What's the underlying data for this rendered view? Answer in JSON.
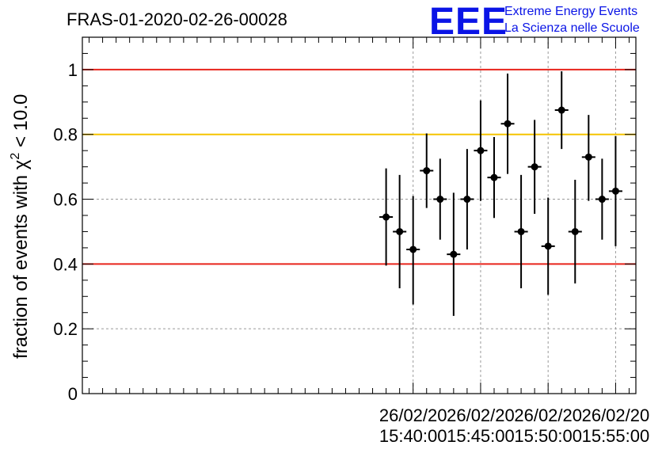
{
  "chart_data": {
    "type": "scatter",
    "title": "FRAS-01-2020-02-26-00028",
    "ylabel": "fraction of events with",
    "ylabel_symbol": "χ",
    "ylabel_sup": "2",
    "ylabel_suffix": "< 10.0",
    "xlabel": "",
    "ylim": [
      0,
      1.1
    ],
    "xlim_minutes": [
      15.5,
      56.5
    ],
    "yticks": [
      "0",
      "0.2",
      "0.4",
      "0.6",
      "0.8",
      "1"
    ],
    "ytick_values": [
      0,
      0.2,
      0.4,
      0.6,
      0.8,
      1.0
    ],
    "xticks": [
      {
        "minute": 40,
        "date": "26/02/20",
        "time": "15:40:00"
      },
      {
        "minute": 45,
        "date": "26/02/20",
        "time": "15:45:00"
      },
      {
        "minute": 50,
        "date": "26/02/20",
        "time": "15:50:00"
      },
      {
        "minute": 55,
        "date": "26/02/20",
        "time": "15:55:00"
      }
    ],
    "grid": true,
    "reference_lines": [
      {
        "y": 1.0,
        "color": "#e8241c"
      },
      {
        "y": 0.8,
        "color": "#f5c400"
      },
      {
        "y": 0.4,
        "color": "#e8241c"
      }
    ],
    "series": [
      {
        "x_minutes": [
          38.0,
          39.0,
          40.0,
          41.0,
          42.0,
          43.0,
          44.0,
          45.0,
          46.0,
          47.0,
          48.0,
          49.0,
          50.0,
          51.0,
          52.0,
          53.0,
          54.0,
          55.0
        ],
        "y": [
          0.545,
          0.5,
          0.445,
          0.688,
          0.6,
          0.43,
          0.6,
          0.75,
          0.667,
          0.833,
          0.5,
          0.7,
          0.455,
          0.875,
          0.5,
          0.73,
          0.6,
          0.625
        ],
        "y_err_up": [
          0.15,
          0.175,
          0.165,
          0.115,
          0.125,
          0.19,
          0.155,
          0.155,
          0.125,
          0.155,
          0.175,
          0.145,
          0.15,
          0.12,
          0.16,
          0.13,
          0.125,
          0.17
        ],
        "y_err_down": [
          0.15,
          0.175,
          0.17,
          0.115,
          0.125,
          0.19,
          0.155,
          0.155,
          0.125,
          0.155,
          0.175,
          0.145,
          0.15,
          0.12,
          0.16,
          0.135,
          0.125,
          0.17
        ],
        "x_halfwidth_minutes": 0.5,
        "color": "#000000"
      }
    ]
  },
  "logo": {
    "mark": "EEE",
    "line1": "Extreme Energy Events",
    "line2": "La Scienza nelle Scuole",
    "color": "#0a14e6"
  }
}
